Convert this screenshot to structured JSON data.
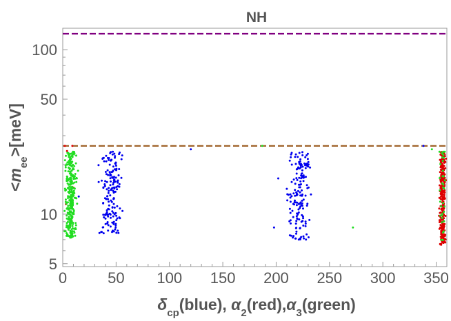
{
  "chart_data": {
    "type": "scatter",
    "title": "NH",
    "xlabel": {
      "parts": [
        {
          "text": "δ",
          "italic": true
        },
        {
          "text": "cp",
          "sub": true
        },
        {
          "text": "(blue), "
        },
        {
          "text": "α",
          "italic": true
        },
        {
          "text": "2",
          "sub": true
        },
        {
          "text": "(red),"
        },
        {
          "text": "α",
          "italic": true
        },
        {
          "text": "3",
          "sub": true
        },
        {
          "text": "(green)"
        }
      ]
    },
    "ylabel": {
      "parts": [
        {
          "text": "<"
        },
        {
          "text": "m",
          "italic": true
        },
        {
          "text": "ee",
          "sub": true
        },
        {
          "text": ">[meV]"
        }
      ]
    },
    "xlim": [
      0,
      360
    ],
    "ylim": [
      4.8,
      135
    ],
    "yscale": "log",
    "x_ticks": [
      0,
      50,
      100,
      150,
      200,
      250,
      300,
      350
    ],
    "y_ticks": [
      5,
      10,
      50,
      100
    ],
    "x_minor_step": 10,
    "y_minor_ticks": [
      6,
      7,
      8,
      9,
      20,
      30,
      40,
      60,
      70,
      80,
      90
    ],
    "grid": false,
    "reference_lines": [
      {
        "y": 125,
        "color": "#800080",
        "style": "dashed"
      },
      {
        "y": 26,
        "color": "#9a5a1e",
        "style": "dashed"
      }
    ],
    "series": [
      {
        "color": "#0000ee",
        "clusters": [
          {
            "x_min": 32,
            "x_max": 58,
            "y_min": 7.6,
            "y_max": 24,
            "n": 170
          },
          {
            "x_min": 208,
            "x_max": 236,
            "y_min": 7.0,
            "y_max": 24,
            "n": 170
          }
        ],
        "points": [
          [
            15,
            12.8
          ],
          [
            120,
            24.8
          ],
          [
            198,
            8.3
          ],
          [
            202,
            16.5
          ],
          [
            338,
            26
          ]
        ]
      },
      {
        "color": "#dd0000",
        "clusters": [
          {
            "x_min": 352,
            "x_max": 360,
            "y_min": 6.5,
            "y_max": 24,
            "n": 320
          }
        ],
        "points": [
          [
            2,
            26
          ],
          [
            9,
            26
          ],
          [
            4,
            24.2
          ],
          [
            8,
            9.2
          ],
          [
            3,
            11.5
          ],
          [
            10,
            14.5
          ]
        ]
      },
      {
        "color": "#22dd22",
        "clusters": [
          {
            "x_min": 0,
            "x_max": 15,
            "y_min": 7.2,
            "y_max": 24,
            "n": 300
          },
          {
            "x_min": 352,
            "x_max": 360,
            "y_min": 6.8,
            "y_max": 24,
            "n": 35
          }
        ],
        "points": [
          [
            187,
            26
          ],
          [
            272,
            8.3
          ],
          [
            346,
            24.8
          ]
        ]
      }
    ]
  }
}
